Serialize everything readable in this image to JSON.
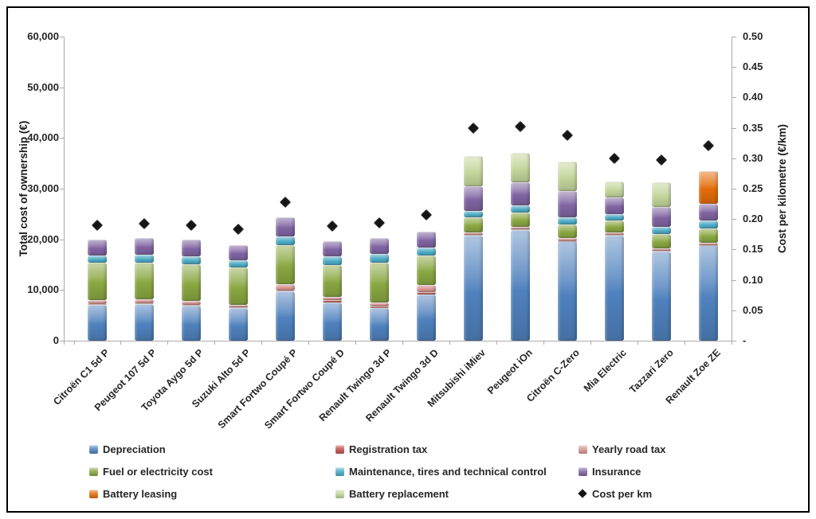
{
  "chart_data": {
    "type": "bar",
    "stacked": true,
    "title": "",
    "ylabel": "Total cost of ownership (€)",
    "y2label": "Cost per kilometre (€/km)",
    "ylim": [
      0,
      60000
    ],
    "y2lim": [
      0,
      0.5
    ],
    "grid": false,
    "legend_position": "bottom",
    "axis_color": "#ababab",
    "text_color": "#262626",
    "yticks": [
      "0",
      "10,000",
      "20,000",
      "30,000",
      "40,000",
      "50,000",
      "60,000"
    ],
    "y2ticks": [
      "-",
      "0.05",
      "0.10",
      "0.15",
      "0.20",
      "0.25",
      "0.30",
      "0.35",
      "0.40",
      "0.45",
      "0.50"
    ],
    "categories": [
      "Citroën C1 5d P",
      "Peugeot 107 5d P",
      "Toyota Aygo 5d P",
      "Suzuki Alto 5d P",
      "Smart Fortwo Coupé P",
      "Smart Fortwo Coupé D",
      "Renault Twingo 3d P",
      "Renault Twingo 3d D",
      "Mitsubishi iMiev",
      "Peugeot iOn",
      "Citroën C-Zero",
      "Mia Electric",
      "Tazzari Zero",
      "Renault Zoe ZE"
    ],
    "series": [
      {
        "name": "Depreciation",
        "color": "#4F81BD",
        "values": [
          7000,
          7270,
          6860,
          6390,
          9740,
          7540,
          6500,
          9110,
          20780,
          21830,
          19580,
          20780,
          17640,
          18800
        ]
      },
      {
        "name": "Registration tax",
        "color": "#C0504D",
        "values": [
          150,
          150,
          150,
          150,
          200,
          500,
          200,
          500,
          100,
          100,
          100,
          100,
          100,
          100
        ]
      },
      {
        "name": "Yearly road tax",
        "color": "#D99694",
        "values": [
          810,
          750,
          790,
          580,
          1260,
          650,
          840,
          1340,
          520,
          530,
          530,
          520,
          530,
          420
        ]
      },
      {
        "name": "Fuel or electricity cost",
        "color": "#89A741",
        "values": [
          7430,
          7220,
          7330,
          7330,
          7600,
          6280,
          7850,
          5860,
          2900,
          2780,
          2770,
          2270,
          2730,
          2880
        ]
      },
      {
        "name": "Maintenance, tires and technical control",
        "color": "#4BACC6",
        "values": [
          1470,
          1570,
          1570,
          1460,
          1730,
          1730,
          1680,
          1570,
          1300,
          1410,
          1420,
          1250,
          1460,
          1570
        ]
      },
      {
        "name": "Insurance",
        "color": "#8064A2",
        "values": [
          3090,
          3250,
          3250,
          2990,
          3770,
          2980,
          3140,
          3140,
          4820,
          4550,
          5130,
          3400,
          3930,
          3250
        ]
      },
      {
        "name": "Battery leasing",
        "color": "#E36C09",
        "values": [
          0,
          0,
          0,
          0,
          0,
          0,
          0,
          0,
          0,
          0,
          0,
          0,
          0,
          6440
        ]
      },
      {
        "name": "Battery replacement",
        "color": "#C3D69B",
        "values": [
          0,
          0,
          0,
          0,
          0,
          0,
          0,
          0,
          6020,
          5900,
          5860,
          3040,
          4810,
          0
        ]
      }
    ],
    "overlay": {
      "name": "Cost per km",
      "type": "scatter",
      "marker": "diamond",
      "color": "#141414",
      "values": [
        0.19,
        0.193,
        0.19,
        0.183,
        0.228,
        0.188,
        0.194,
        0.207,
        0.349,
        0.352,
        0.338,
        0.3,
        0.297,
        0.321
      ]
    }
  }
}
